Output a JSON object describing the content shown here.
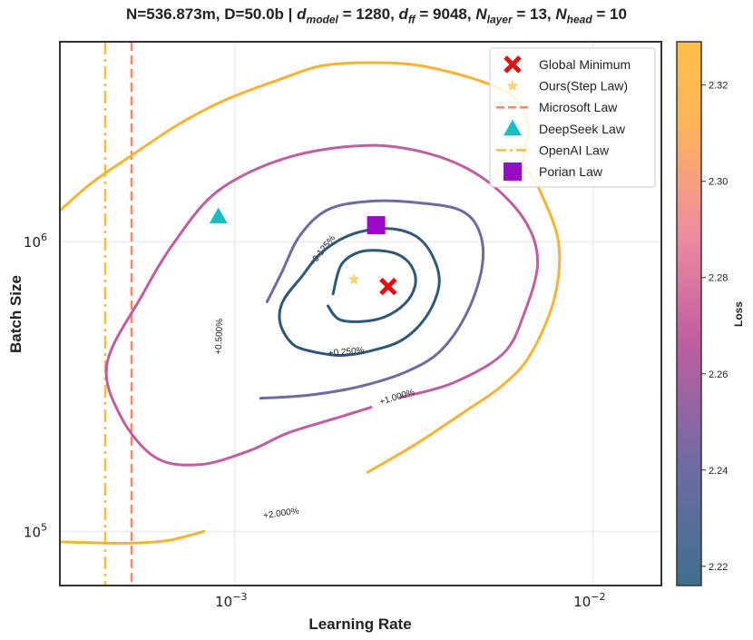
{
  "title": {
    "prefix": "N=536.873m, D=50.0b | ",
    "d_model_sym": "d",
    "d_model_sub": "model",
    "d_model_val": " = 1280, ",
    "d_ff_sym": "d",
    "d_ff_sub": "ff",
    "d_ff_val": " = 9048, ",
    "n_layer_sym": "N",
    "n_layer_sub": "layer",
    "n_layer_val": " = 13, ",
    "n_head_sym": "N",
    "n_head_sub": "head",
    "n_head_val": " = 10"
  },
  "chart_data": {
    "type": "contour",
    "xlabel": "Learning Rate",
    "ylabel": "Batch Size",
    "xscale": "log",
    "yscale": "log",
    "xlim": [
      0.000325,
      0.0155
    ],
    "ylim": [
      65000,
      4900000
    ],
    "grid": true,
    "x_ticks": [
      {
        "value": 0.001,
        "base": "10",
        "exp": "−3"
      },
      {
        "value": 0.01,
        "base": "10",
        "exp": "−2"
      }
    ],
    "y_ticks": [
      {
        "value": 100000,
        "base": "10",
        "exp": "5"
      },
      {
        "value": 1000000,
        "base": "10",
        "exp": "6"
      }
    ],
    "colorbar": {
      "label": "Loss",
      "range": [
        2.216,
        2.329
      ],
      "ticks": [
        "2.22",
        "2.24",
        "2.26",
        "2.28",
        "2.30",
        "2.32"
      ],
      "colors": [
        "#3f6f8c",
        "#6e6ba3",
        "#c05ea0",
        "#f08ca0",
        "#ffb45a",
        "#ffc04a"
      ]
    },
    "contours": [
      {
        "level": "+0.125%",
        "color": "#2e5877",
        "points": [
          [
            0.00188,
            660000
          ],
          [
            0.00198,
            830000
          ],
          [
            0.00222,
            920000
          ],
          [
            0.00258,
            930000
          ],
          [
            0.00292,
            890000
          ],
          [
            0.00315,
            800000
          ],
          [
            0.00318,
            700000
          ],
          [
            0.00298,
            610000
          ],
          [
            0.00262,
            550000
          ],
          [
            0.00225,
            530000
          ],
          [
            0.00195,
            540000
          ],
          [
            0.00182,
            600000
          ]
        ],
        "closed": false,
        "label_at": [
          0.00178,
          920000
        ],
        "label_rot": -52
      },
      {
        "level": "+0.250%",
        "color": "#2e5877",
        "points": [
          [
            0.00168,
            415000
          ],
          [
            0.00146,
            440000
          ],
          [
            0.00134,
            520000
          ],
          [
            0.00136,
            620000
          ],
          [
            0.00154,
            760000
          ],
          [
            0.00175,
            920000
          ],
          [
            0.00212,
            1060000
          ],
          [
            0.00265,
            1110000
          ],
          [
            0.00318,
            1050000
          ],
          [
            0.00355,
            900000
          ],
          [
            0.00372,
            720000
          ],
          [
            0.00345,
            560000
          ],
          [
            0.00295,
            460000
          ],
          [
            0.0024,
            420000
          ],
          [
            0.00198,
            405000
          ],
          [
            0.00168,
            415000
          ]
        ],
        "closed": false,
        "label_at": [
          0.00205,
          408000
        ],
        "label_rot": -5
      },
      {
        "level": "+0.500%",
        "color": "#6e6ba3",
        "points": [
          [
            0.00123,
            620000
          ],
          [
            0.00135,
            780000
          ],
          [
            0.00152,
            1050000
          ],
          [
            0.00182,
            1290000
          ],
          [
            0.0024,
            1380000
          ],
          [
            0.0033,
            1360000
          ],
          [
            0.00428,
            1280000
          ],
          [
            0.00482,
            1080000
          ],
          [
            0.0049,
            820000
          ],
          [
            0.00445,
            570000
          ],
          [
            0.00375,
            420000
          ],
          [
            0.003,
            355000
          ],
          [
            0.0022,
            315000
          ],
          [
            0.0016,
            295000
          ],
          [
            0.00118,
            288000
          ]
        ],
        "closed": false,
        "label_at": [
          0.00092,
          470000
        ],
        "label_rot": -88
      },
      {
        "level": "+1.000%",
        "color": "#c05ea0",
        "points": [
          [
            0.0029,
            290000
          ],
          [
            0.00405,
            325000
          ],
          [
            0.0056,
            410000
          ],
          [
            0.0064,
            560000
          ],
          [
            0.007,
            850000
          ],
          [
            0.0064,
            1200000
          ],
          [
            0.00495,
            1650000
          ],
          [
            0.00355,
            2000000
          ],
          [
            0.00235,
            2150000
          ],
          [
            0.0014,
            1950000
          ],
          [
            0.0009,
            1500000
          ],
          [
            0.00068,
            1000000
          ],
          [
            0.00055,
            650000
          ],
          [
            0.00044,
            380000
          ],
          [
            0.00048,
            250000
          ],
          [
            0.0006,
            180000
          ],
          [
            0.0008,
            170000
          ],
          [
            0.0011,
            190000
          ],
          [
            0.0014,
            218000
          ],
          [
            0.0019,
            245000
          ],
          [
            0.0024,
            268000
          ]
        ],
        "closed": false,
        "label_at": [
          0.00285,
          285000
        ],
        "label_rot": -17
      },
      {
        "level": "+2.000%",
        "color": "#f7b334",
        "points": [
          [
            0.000325,
            1280000
          ],
          [
            0.0004,
            1600000
          ],
          [
            0.00052,
            2000000
          ],
          [
            0.0007,
            2550000
          ],
          [
            0.00095,
            3100000
          ],
          [
            0.00135,
            3650000
          ],
          [
            0.00175,
            4050000
          ],
          [
            0.0024,
            4150000
          ],
          [
            0.0033,
            4050000
          ],
          [
            0.0048,
            3600000
          ],
          [
            0.006,
            3150000
          ],
          [
            0.0066,
            2500000
          ],
          [
            0.0064,
            1900000
          ],
          [
            0.0071,
            1500000
          ],
          [
            0.008,
            1000000
          ],
          [
            0.0078,
            640000
          ],
          [
            0.0067,
            410000
          ],
          [
            0.0056,
            320000
          ],
          [
            0.0043,
            255000
          ],
          [
            0.0032,
            200000
          ],
          [
            0.00235,
            160000
          ]
        ],
        "closed": false,
        "label_at": [
          0.00135,
          113000
        ],
        "label_rot": -8
      },
      {
        "level": "+2.000% (lower)",
        "color": "#f7b334",
        "points": [
          [
            0.000325,
            92000
          ],
          [
            0.0005,
            91000
          ],
          [
            0.00065,
            93000
          ],
          [
            0.00082,
            100000
          ]
        ],
        "closed": false
      }
    ],
    "vlines": [
      {
        "name": "OpenAI Law",
        "x": 0.000435,
        "color": "#f7bd41",
        "style": "dashdot"
      },
      {
        "name": "Microsoft Law",
        "x": 0.000515,
        "color": "#f6896c",
        "style": "dashed"
      }
    ],
    "markers": [
      {
        "name": "Global Minimum",
        "x": 0.00268,
        "y": 700000,
        "shape": "x",
        "color": "#e01010"
      },
      {
        "name": "Ours(Step Law)",
        "x": 0.00215,
        "y": 740000,
        "shape": "star",
        "color": "#f5d478"
      },
      {
        "name": "DeepSeek Law",
        "x": 0.0009,
        "y": 1220000,
        "shape": "triangle",
        "color": "#18bec3"
      },
      {
        "name": "Porian Law",
        "x": 0.00248,
        "y": 1140000,
        "shape": "square",
        "color": "#9a08c8"
      }
    ],
    "legend": {
      "placement": "top-right",
      "entries": [
        {
          "label": "Global Minimum",
          "kind": "x",
          "color": "#e01010"
        },
        {
          "label": "Ours(Step Law)",
          "kind": "star",
          "color": "#f5d478"
        },
        {
          "label": "Microsoft Law",
          "kind": "dashed",
          "color": "#f6896c"
        },
        {
          "label": "DeepSeek Law",
          "kind": "triangle",
          "color": "#18bec3"
        },
        {
          "label": "OpenAI Law",
          "kind": "dashdot",
          "color": "#f7bd41"
        },
        {
          "label": "Porian Law",
          "kind": "square",
          "color": "#9a08c8"
        }
      ]
    }
  }
}
